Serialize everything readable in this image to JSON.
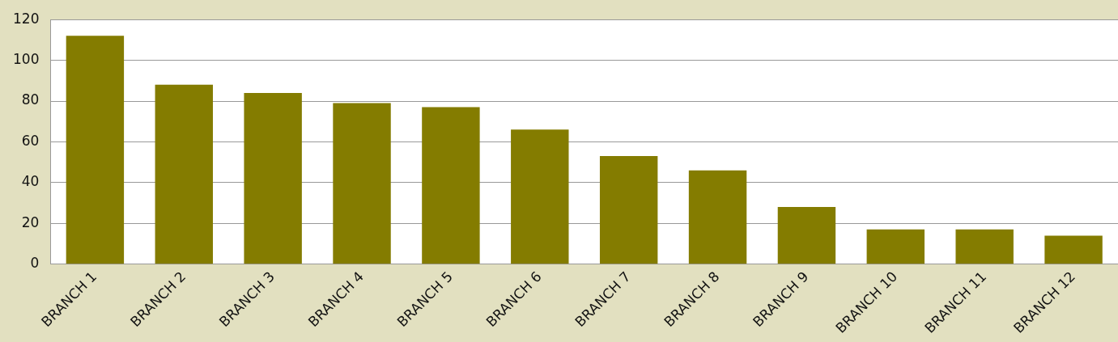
{
  "chart_data": {
    "type": "bar",
    "categories": [
      "BRANCH 1",
      "BRANCH 2",
      "BRANCH 3",
      "BRANCH 4",
      "BRANCH 5",
      "BRANCH 6",
      "BRANCH 7",
      "BRANCH 8",
      "BRANCH 9",
      "BRANCH 10",
      "BRANCH 11",
      "BRANCH 12"
    ],
    "values": [
      112,
      88,
      84,
      79,
      77,
      66,
      53,
      46,
      28,
      17,
      17,
      14
    ],
    "color": "#847c00",
    "ylim": [
      0,
      120
    ],
    "yticks": [
      0,
      20,
      40,
      60,
      80,
      100,
      120
    ],
    "grid": "y",
    "legend": false
  }
}
